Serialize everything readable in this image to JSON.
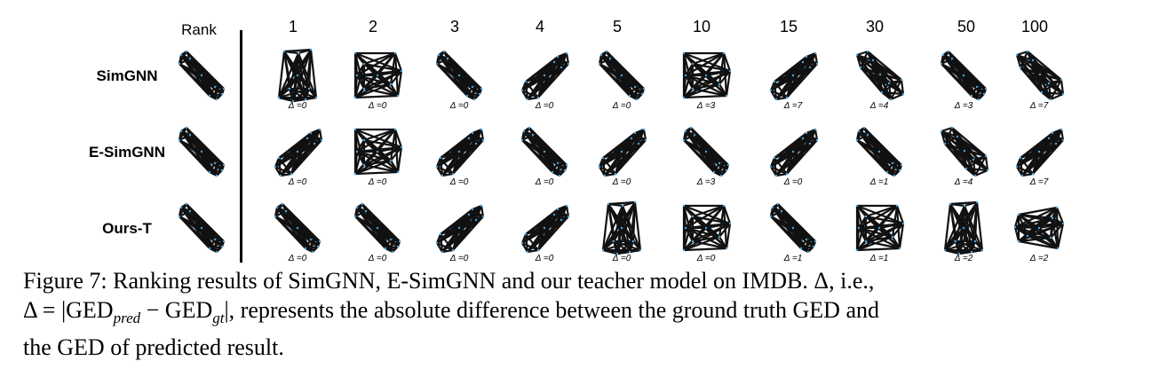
{
  "figure": {
    "rank_header": "Rank",
    "columns": [
      "1",
      "2",
      "3",
      "4",
      "5",
      "10",
      "15",
      "30",
      "50",
      "100"
    ],
    "rows": [
      {
        "label": "SimGNN",
        "deltas": [
          "Δ =0",
          "Δ =0",
          "Δ =0",
          "Δ =0",
          "Δ =0",
          "Δ =3",
          "Δ =7",
          "Δ =4",
          "Δ =3",
          "Δ =7"
        ],
        "graphs": [
          "bowtie-tall",
          "wedge-right",
          "bowtie",
          "wedge-up",
          "bowtie",
          "wedge-right",
          "wedge-up",
          "bowtie-dense",
          "bowtie",
          "bowtie-dense"
        ]
      },
      {
        "label": "E-SimGNN",
        "deltas": [
          "Δ =0",
          "Δ =0",
          "Δ =0",
          "Δ =0",
          "Δ =0",
          "Δ =3",
          "Δ =0",
          "Δ =1",
          "Δ =4",
          "Δ =7"
        ],
        "graphs": [
          "wedge-up",
          "wedge-right",
          "wedge-up",
          "bowtie",
          "wedge-up",
          "bowtie",
          "wedge-up",
          "bowtie",
          "bowtie-dense",
          "wedge-up"
        ]
      },
      {
        "label": "Ours-T",
        "deltas": [
          "Δ =0",
          "Δ =0",
          "Δ =0",
          "Δ =0",
          "Δ =0",
          "Δ =0",
          "Δ =1",
          "Δ =1",
          "Δ =2",
          "Δ =2"
        ],
        "graphs": [
          "bowtie",
          "bowtie",
          "wedge-up",
          "wedge-up",
          "bowtie-tall",
          "wedge-right",
          "bowtie",
          "wedge-right",
          "bowtie-tall",
          "wedge-left"
        ]
      }
    ]
  },
  "caption": {
    "line1": "Figure 7: Ranking results of SimGNN, E-SimGNN and our teacher model on IMDB. Δ, i.e.,",
    "line2": "Δ = |GED",
    "line2_sub1": "pred",
    "line2_mid": " − GED",
    "line2_sub2": "gt",
    "line2_rest": "|, represents the absolute difference between the ground truth GED and",
    "line3": "the GED of predicted result."
  }
}
